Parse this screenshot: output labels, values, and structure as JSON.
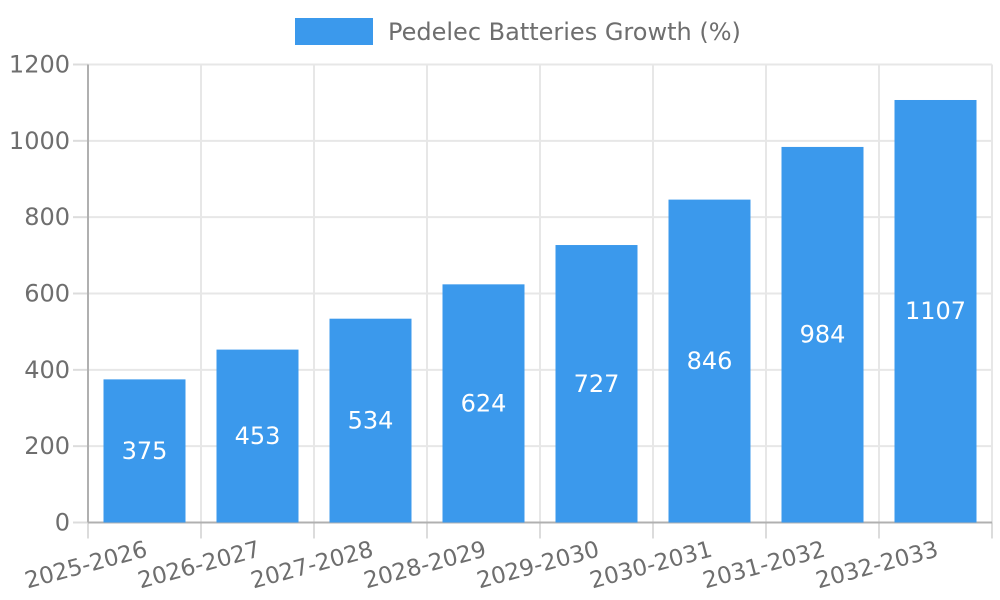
{
  "chart_data": {
    "type": "bar",
    "title": "Pedelec Batteries Growth (%)",
    "legend": {
      "label": "Pedelec Batteries Growth (%)",
      "position": "top"
    },
    "categories": [
      "2025-2026",
      "2026-2027",
      "2027-2028",
      "2028-2029",
      "2029-2030",
      "2030-2031",
      "2031-2032",
      "2032-2033"
    ],
    "values": [
      375,
      453,
      534,
      624,
      727,
      846,
      984,
      1107
    ],
    "xlabel": "",
    "ylabel": "",
    "ylim": [
      0,
      1200
    ],
    "y_ticks": [
      0,
      200,
      400,
      600,
      800,
      1000,
      1200
    ],
    "grid": true,
    "value_labels_position": "center-of-bar",
    "x_label_rotation_deg": -15,
    "colors": {
      "bar": "#3B99EC",
      "value_label": "#FFFFFF",
      "tick_label": "#6E6E6E",
      "legend_label": "#6E6E6E",
      "gridline": "#E7E7E7",
      "tick_mark": "#DCDCDC",
      "axis_line": "#B0B0B0",
      "background": "#FFFFFF"
    }
  }
}
